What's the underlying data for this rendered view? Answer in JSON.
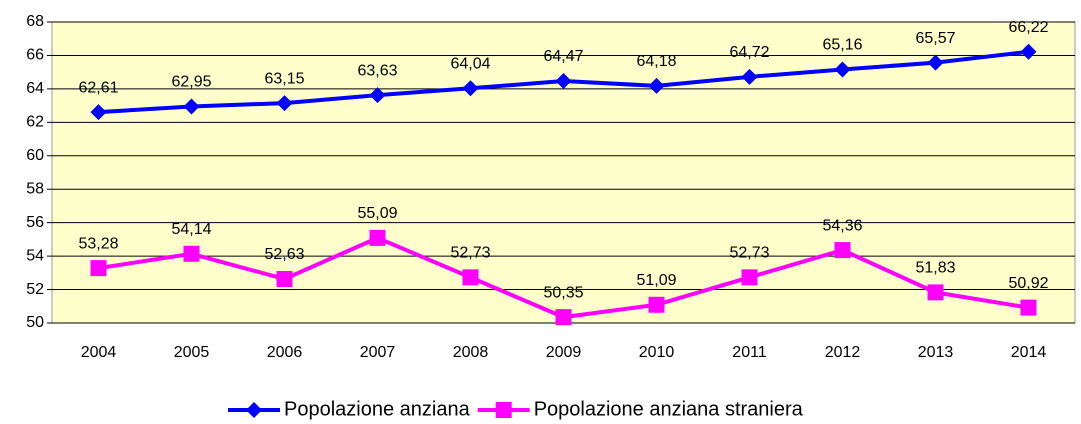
{
  "chart_data": {
    "type": "line",
    "categories": [
      "2004",
      "2005",
      "2006",
      "2007",
      "2008",
      "2009",
      "2010",
      "2011",
      "2012",
      "2013",
      "2014"
    ],
    "series": [
      {
        "name": "Popolazione anziana",
        "color": "#0000ff",
        "values": [
          62.61,
          62.95,
          63.15,
          63.63,
          64.04,
          64.47,
          64.18,
          64.72,
          65.16,
          65.57,
          66.22
        ],
        "value_labels": [
          "62,61",
          "62,95",
          "63,15",
          "63,63",
          "64,04",
          "64,47",
          "64,18",
          "64,72",
          "65,16",
          "65,57",
          "66,22"
        ]
      },
      {
        "name": "Popolazione anziana straniera",
        "color": "#ff00ff",
        "values": [
          53.28,
          54.14,
          52.63,
          55.09,
          52.73,
          50.35,
          51.09,
          52.73,
          54.36,
          51.83,
          50.92
        ],
        "value_labels": [
          "53,28",
          "54,14",
          "52,63",
          "55,09",
          "52,73",
          "50,35",
          "51,09",
          "52,73",
          "54,36",
          "51,83",
          "50,92"
        ]
      }
    ],
    "ylim": [
      50,
      68
    ],
    "yticks": [
      50,
      52,
      54,
      56,
      58,
      60,
      62,
      64,
      66,
      68
    ],
    "grid": true,
    "legend": "bottom"
  }
}
